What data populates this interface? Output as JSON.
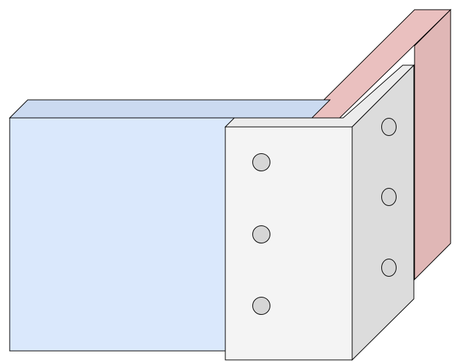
{
  "diagram": {
    "description_visible_text": "",
    "colors": {
      "background": "#ffffff",
      "outline": "#000000",
      "blue_front": "#dae8fc",
      "blue_top": "#cbdaf0",
      "red_side": "#e0b7b6",
      "red_top": "#eac0bf",
      "bracket_front": "#f4f4f4",
      "bracket_side": "#dcdcdc",
      "bracket_top": "#ececec",
      "bolt_hole": "#d6d6d6"
    },
    "components": [
      {
        "name": "blue-beam",
        "kind": "box"
      },
      {
        "name": "red-plate",
        "kind": "plate"
      },
      {
        "name": "angle-bracket",
        "kind": "bracket"
      }
    ],
    "bolt_hole_counts": {
      "front_leg": 3,
      "side_leg": 3
    }
  }
}
